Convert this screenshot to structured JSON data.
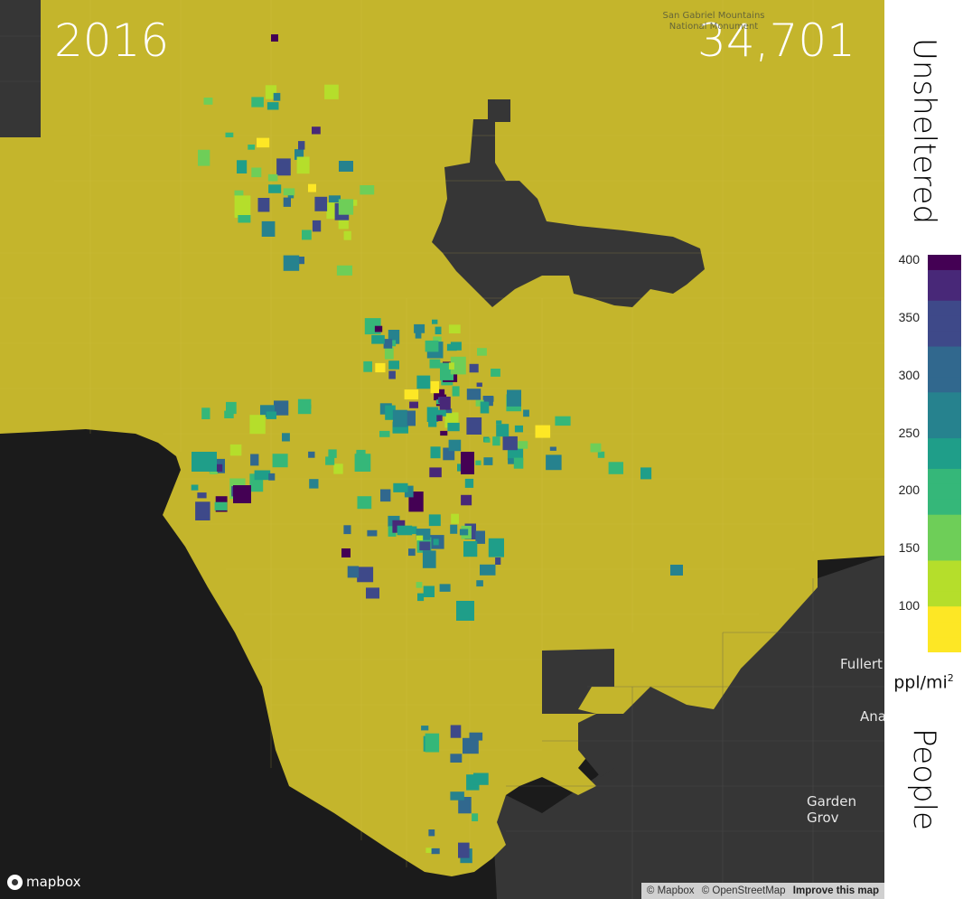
{
  "year": "2016",
  "count": "34,701",
  "map_labels": {
    "mountains_line1": "San Gabriel Mountains",
    "mountains_line2": "National Monument",
    "city1": "Fullert",
    "city2": "Ana",
    "city3": "Garden Grov"
  },
  "logo": "mapbox",
  "attribution": {
    "mapbox": "© Mapbox",
    "osm": "© OpenStreetMap",
    "improve": "Improve this map"
  },
  "legend": {
    "title_top": "Unsheltered",
    "title_bottom": "People",
    "unit": "ppl/mi",
    "unit_sup": "2",
    "ticks": [
      "400",
      "350",
      "300",
      "250",
      "200",
      "150",
      "100"
    ],
    "range": [
      60,
      405
    ],
    "colors": {
      "base": "#c4b52c",
      "low": "#f3e524",
      "high": "#3a0b57",
      "land": "#363636",
      "water": "#1b1b1b"
    }
  }
}
